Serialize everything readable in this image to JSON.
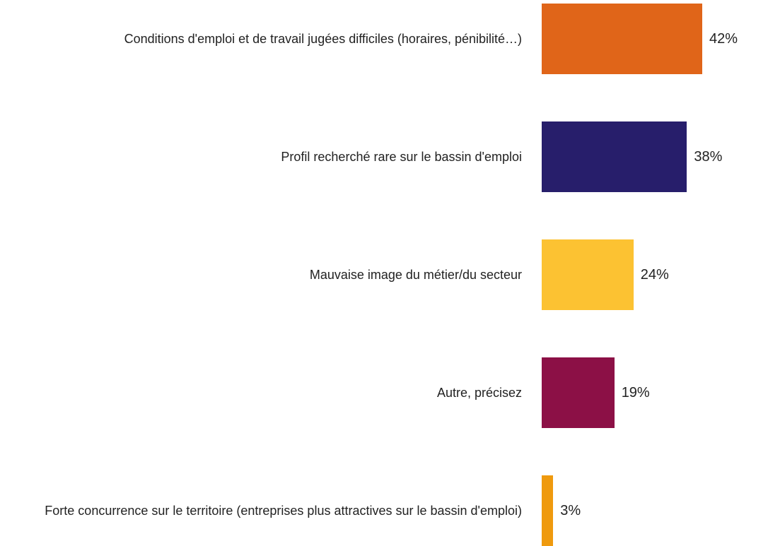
{
  "chart_data": {
    "type": "bar",
    "orientation": "horizontal",
    "categories": [
      "Conditions d'emploi et de travail jugées difficiles (horaires, pénibilité…)",
      "Profil recherché rare sur le bassin d'emploi",
      "Mauvaise image du métier/du secteur",
      "Autre, précisez",
      "Forte concurrence sur le territoire (entreprises plus attractives sur le bassin d'emploi)"
    ],
    "values": [
      42,
      38,
      24,
      19,
      3
    ],
    "value_labels": [
      "42%",
      "38%",
      "24%",
      "19%",
      "3%"
    ],
    "colors": [
      "#e06519",
      "#271e6b",
      "#fcc232",
      "#8c1046",
      "#ef9a0e"
    ]
  }
}
